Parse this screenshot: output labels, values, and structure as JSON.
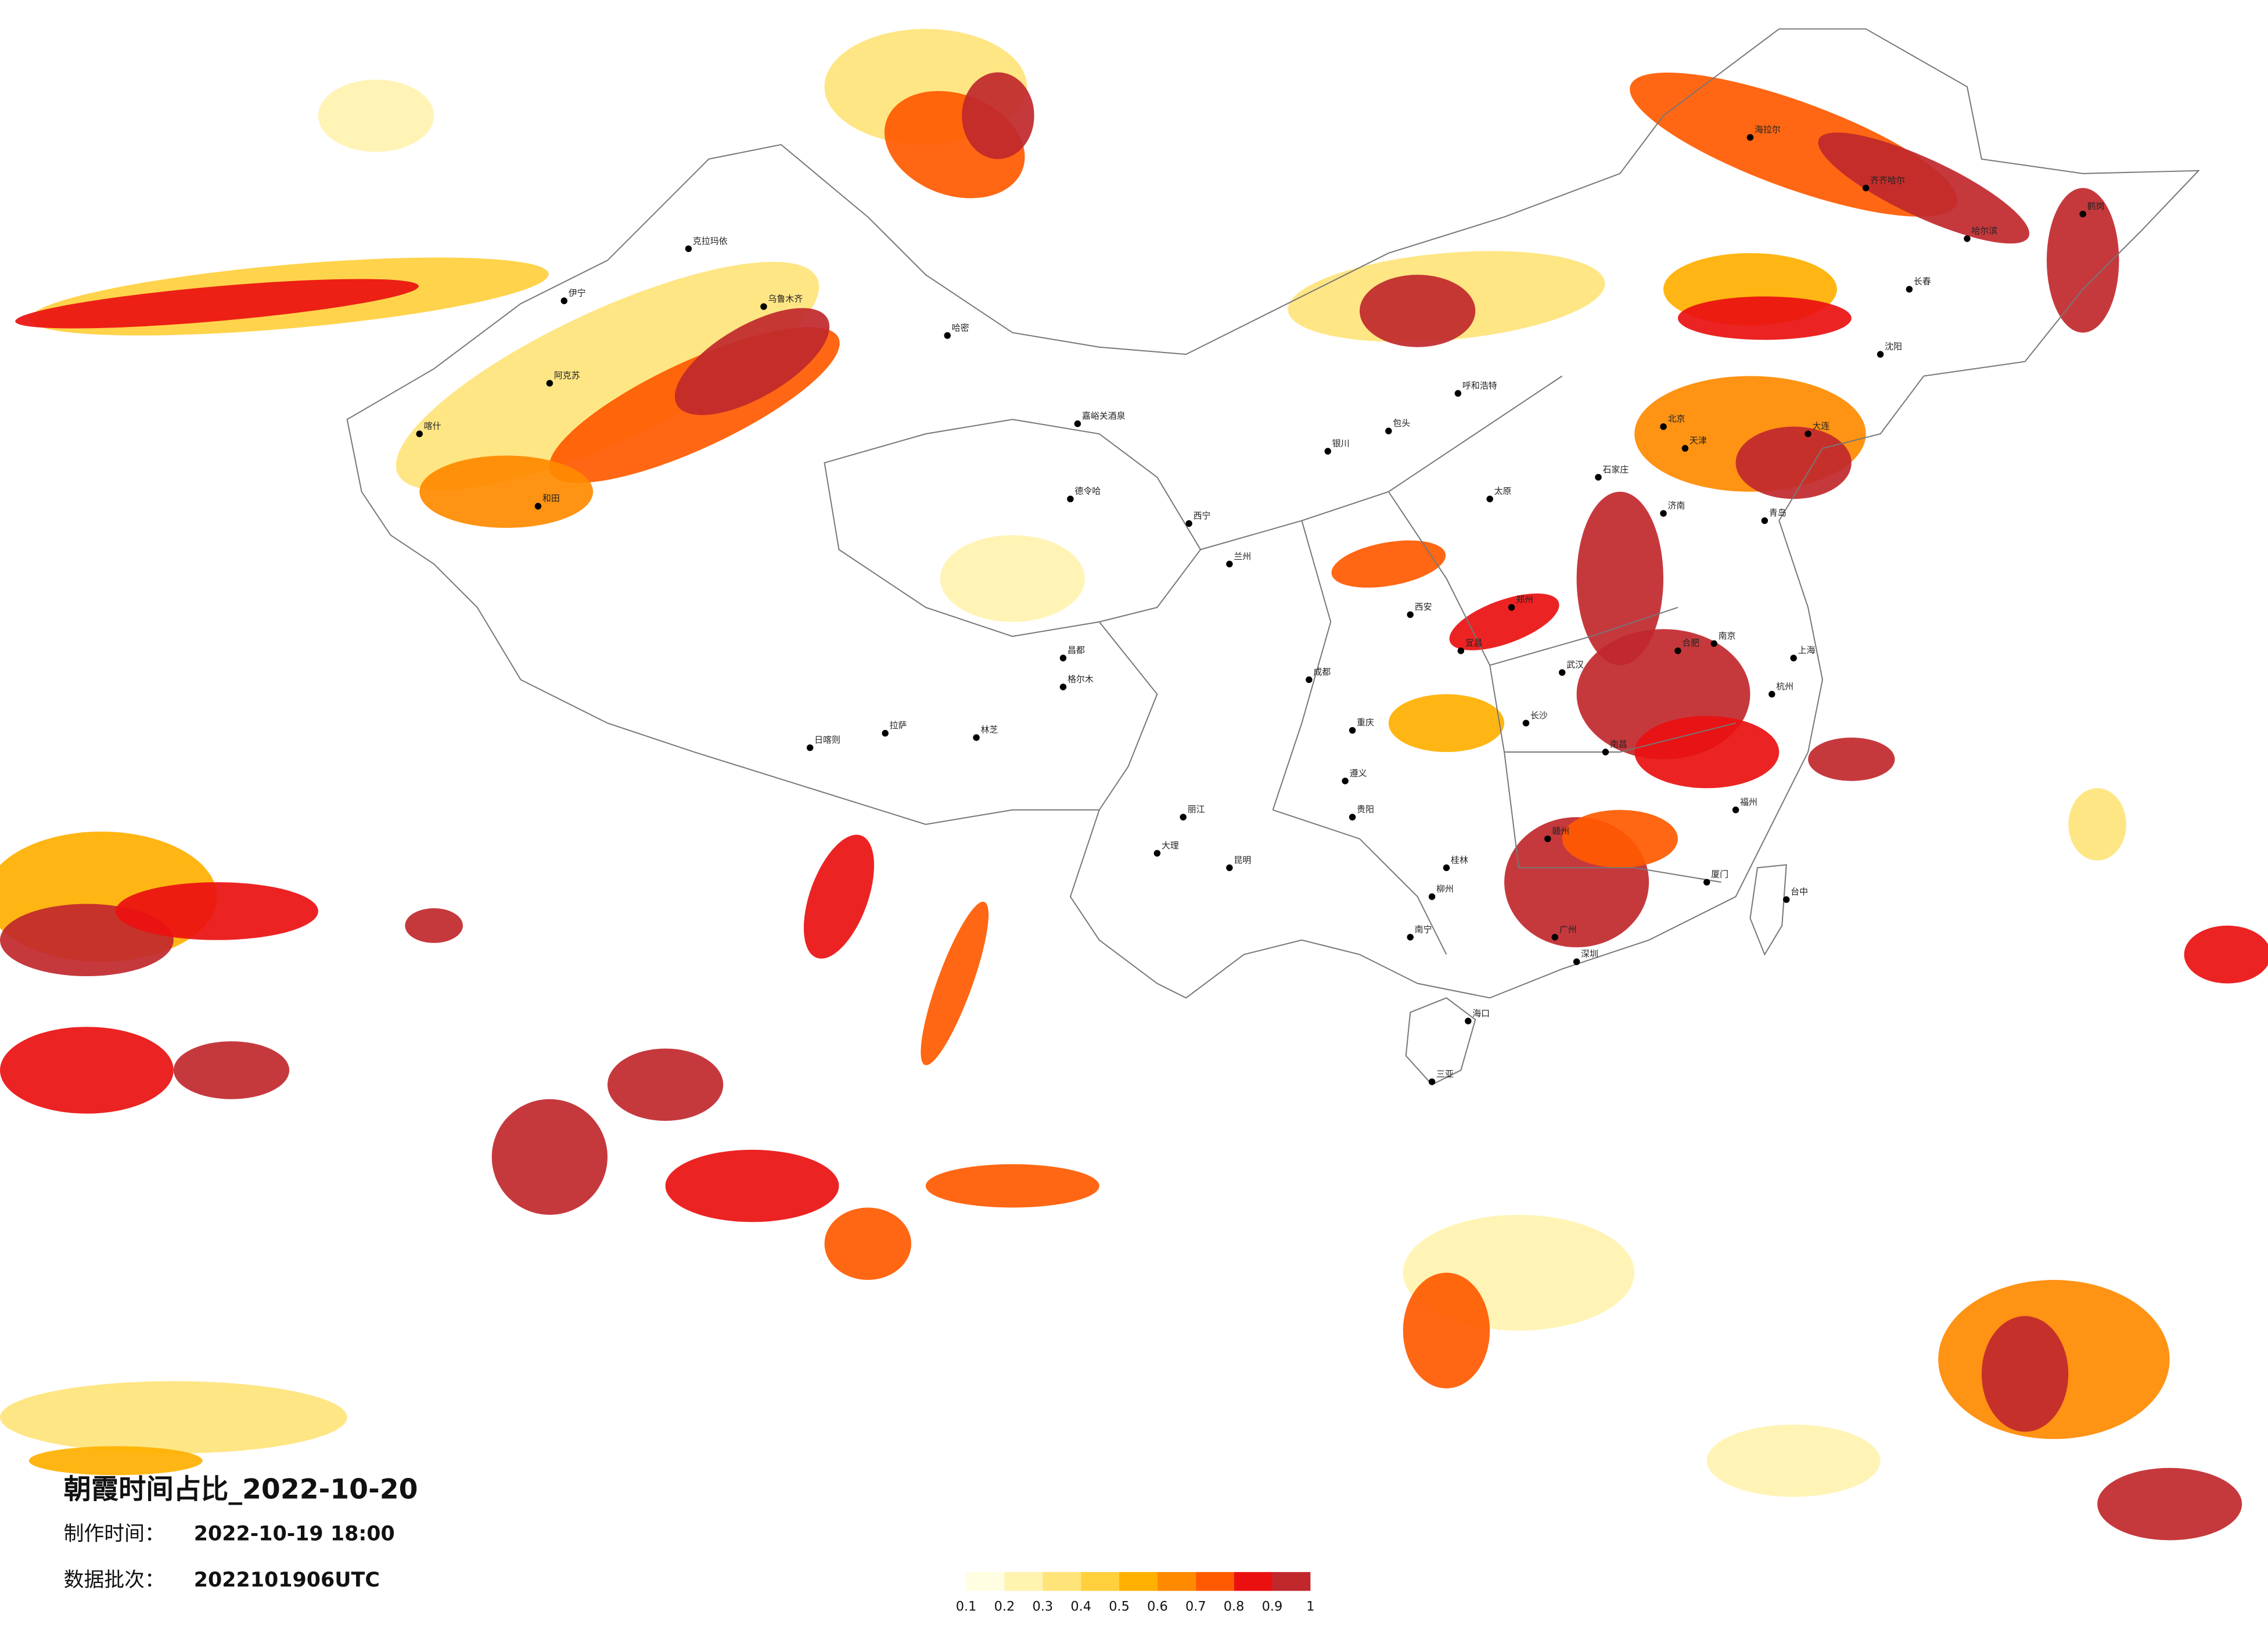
{
  "title": "朝霞时间占比_2022-10-20",
  "made_time": {
    "label": "制作时间：",
    "value": "2022-10-19 18:00"
  },
  "data_batch": {
    "label": "数据批次：",
    "value": "2022101906UTC"
  },
  "legend": {
    "colors": [
      "#fffde2",
      "#fff3b0",
      "#ffe47a",
      "#ffcf3c",
      "#ffb000",
      "#ff8a00",
      "#ff5a00",
      "#ea1010",
      "#c0282c"
    ],
    "ticks": [
      0.1,
      0.2,
      0.3,
      0.4,
      0.5,
      0.6,
      0.7,
      0.8,
      0.9,
      1
    ]
  },
  "cities": [
    "克拉玛依",
    "乌鲁木齐",
    "伊宁",
    "阿克苏",
    "喀什",
    "和田",
    "哈密",
    "嘉峪关酒泉",
    "格尔木",
    "德令哈",
    "西宁",
    "兰州",
    "银川",
    "呼和浩特",
    "包头",
    "北京",
    "天津",
    "石家庄",
    "太原",
    "济南",
    "郑州",
    "西安",
    "成都",
    "重庆",
    "贵阳",
    "昆明",
    "南宁",
    "长沙",
    "武汉",
    "南昌",
    "合肥",
    "南京",
    "上海",
    "杭州",
    "福州",
    "广州",
    "深圳",
    "海口",
    "三亚",
    "台中",
    "拉萨",
    "日喀则",
    "林芝",
    "昌都",
    "沈阳",
    "长春",
    "哈尔滨",
    "齐齐哈尔",
    "鹤岗",
    "海拉尔",
    "大连",
    "青岛",
    "大理",
    "丽江",
    "遵义",
    "桂林",
    "柳州",
    "厦门",
    "赣州",
    "宜昌"
  ]
}
